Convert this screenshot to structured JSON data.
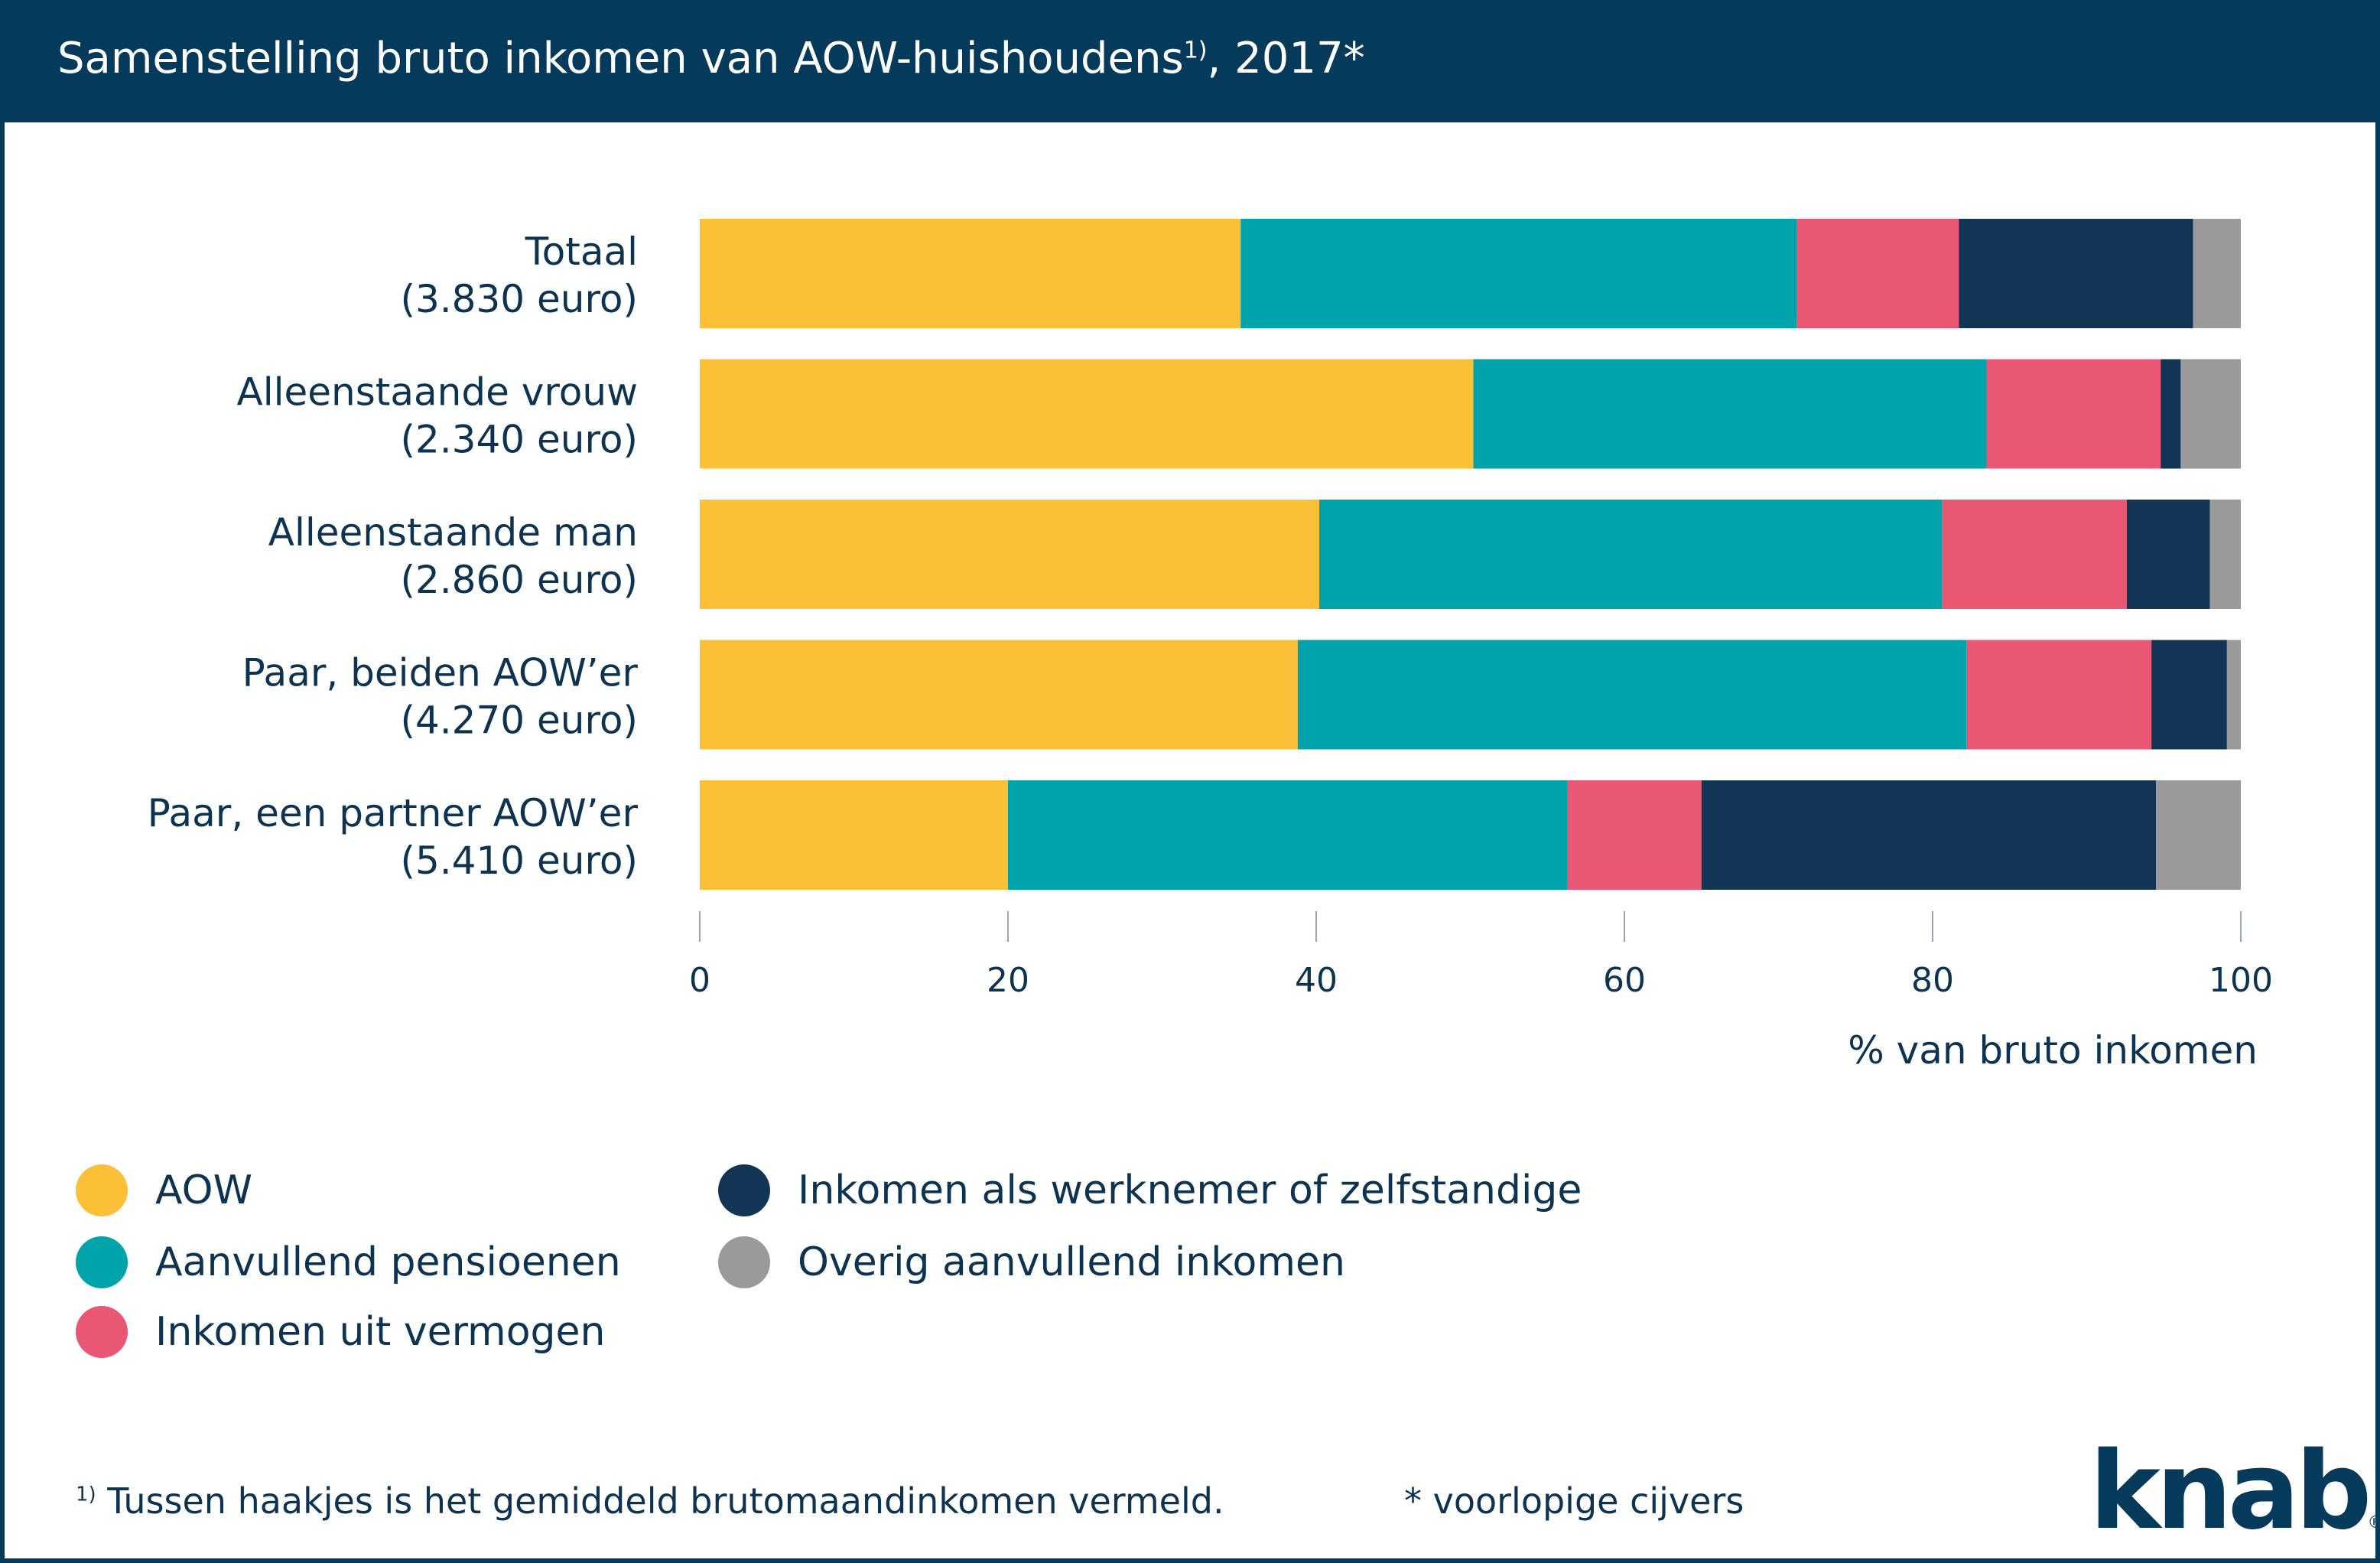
{
  "header": {
    "title": "Samenstelling bruto inkomen van AOW-huishoudens",
    "title_sup": "1)",
    "title_suffix": ", 2017*"
  },
  "chart_data": {
    "type": "bar",
    "orientation": "horizontal",
    "stacked": true,
    "title": "Samenstelling bruto inkomen van AOW-huishoudens 1), 2017*",
    "xlabel": "% van bruto inkomen",
    "xlim": [
      0,
      100
    ],
    "xticks": [
      "0",
      "20",
      "40",
      "60",
      "80",
      "100"
    ],
    "grid": false,
    "legend_placement": "bottom",
    "categories": [
      [
        "Totaal",
        "(3.830 euro)"
      ],
      [
        "Alleenstaande vrouw",
        "(2.340 euro)"
      ],
      [
        "Alleenstaande man",
        "(2.860 euro)"
      ],
      [
        "Paar, beiden AOW’er",
        "(4.270 euro)"
      ],
      [
        "Paar, een partner AOW’er",
        "(5.410 euro)"
      ]
    ],
    "series": [
      {
        "name": "AOW",
        "color": "#fbbf38",
        "values": [
          35.1,
          50.2,
          40.2,
          38.8,
          20.0
        ]
      },
      {
        "name": "Aanvullend pensioenen",
        "color": "#00a3a9",
        "values": [
          36.1,
          33.3,
          40.4,
          43.4,
          36.3
        ]
      },
      {
        "name": "Inkomen uit vermogen",
        "color": "#e95774",
        "values": [
          10.5,
          11.3,
          12.0,
          12.0,
          8.7
        ]
      },
      {
        "name": "Inkomen als werknemer of zelfstandige",
        "color": "#123556",
        "values": [
          15.2,
          1.3,
          5.4,
          4.9,
          29.5
        ]
      },
      {
        "name": "Overig aanvullend inkomen",
        "color": "#9a9a9a",
        "values": [
          3.1,
          3.9,
          2.0,
          0.9,
          5.5
        ]
      }
    ]
  },
  "footnotes": {
    "note_sup": "1)",
    "note": " Tussen haakjes is het gemiddeld brutomaandinkomen vermeld.",
    "provisional": "* voorlopige cijvers"
  },
  "logo": {
    "text": "knab",
    "mark": "®"
  }
}
